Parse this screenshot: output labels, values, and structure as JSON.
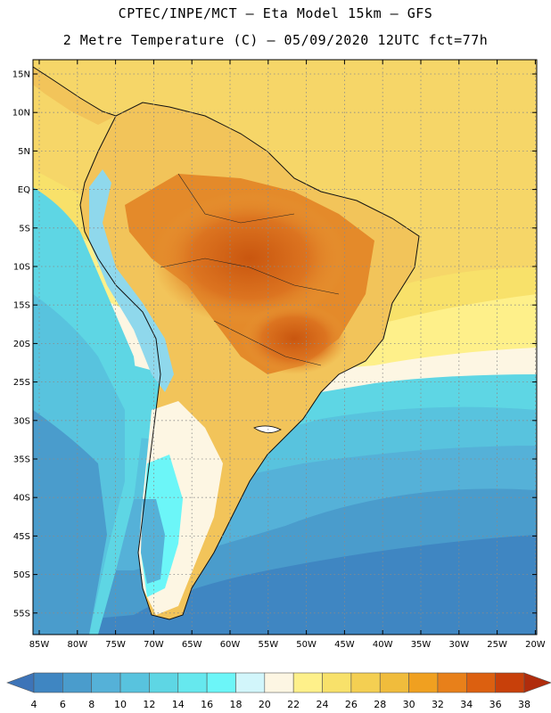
{
  "header": {
    "line1": "CPTEC/INPE/MCT –  Eta Model 15km – GFS",
    "line2": "2 Metre Temperature (C) – 05/09/2020 12UTC fct=77h"
  },
  "map": {
    "lat_labels": [
      "15N",
      "10N",
      "5N",
      "EQ",
      "5S",
      "10S",
      "15S",
      "20S",
      "25S",
      "30S",
      "35S",
      "40S",
      "45S",
      "50S",
      "55S"
    ],
    "lon_labels": [
      "85W",
      "80W",
      "75W",
      "70W",
      "65W",
      "60W",
      "55W",
      "50W",
      "45W",
      "40W",
      "35W",
      "30W",
      "25W",
      "20W"
    ],
    "land_color": "#f2c45a",
    "hot_core_color": "#d96a1a",
    "ocean_warm_color": "#f6e08a",
    "ocean_mid_color": "#5ed6e4",
    "ocean_cold_color": "#3a86c4"
  },
  "colorbar": {
    "labels": [
      "4",
      "6",
      "8",
      "10",
      "12",
      "14",
      "16",
      "18",
      "20",
      "22",
      "24",
      "26",
      "28",
      "30",
      "32",
      "34",
      "36",
      "38"
    ],
    "colors": [
      "#3d74b8",
      "#3f86c2",
      "#4a9ccc",
      "#55b1d8",
      "#58c3de",
      "#5ed6e4",
      "#66e8ee",
      "#6cf6f8",
      "#d2f6fb",
      "#fdf6e3",
      "#fef08a",
      "#f8e16a",
      "#f4cf52",
      "#f0bc3c",
      "#f0a020",
      "#e8801a",
      "#dc6010",
      "#c8400a",
      "#b02c0c"
    ]
  }
}
